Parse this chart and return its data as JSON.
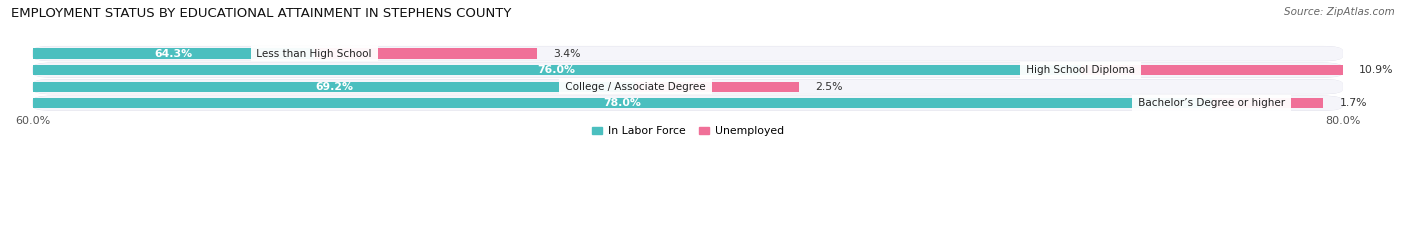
{
  "title": "EMPLOYMENT STATUS BY EDUCATIONAL ATTAINMENT IN STEPHENS COUNTY",
  "source": "Source: ZipAtlas.com",
  "categories": [
    "Less than High School",
    "High School Diploma",
    "College / Associate Degree",
    "Bachelor’s Degree or higher"
  ],
  "labor_force": [
    64.3,
    76.0,
    69.2,
    78.0
  ],
  "unemployed": [
    3.4,
    10.9,
    2.5,
    1.7
  ],
  "labor_force_color": "#4BBFBF",
  "unemployed_color": "#F07098",
  "row_bg_color": "#F0F0F5",
  "row_inner_color": "#FAFAFD",
  "x_min": 60.0,
  "x_max": 80.0,
  "x_tick_labels": [
    "60.0%",
    "80.0%"
  ],
  "legend_labels": [
    "In Labor Force",
    "Unemployed"
  ],
  "bar_height": 0.62,
  "title_fontsize": 9.5,
  "label_fontsize": 7.8,
  "tick_fontsize": 8.0,
  "source_fontsize": 7.5,
  "background_color": "#FFFFFF"
}
